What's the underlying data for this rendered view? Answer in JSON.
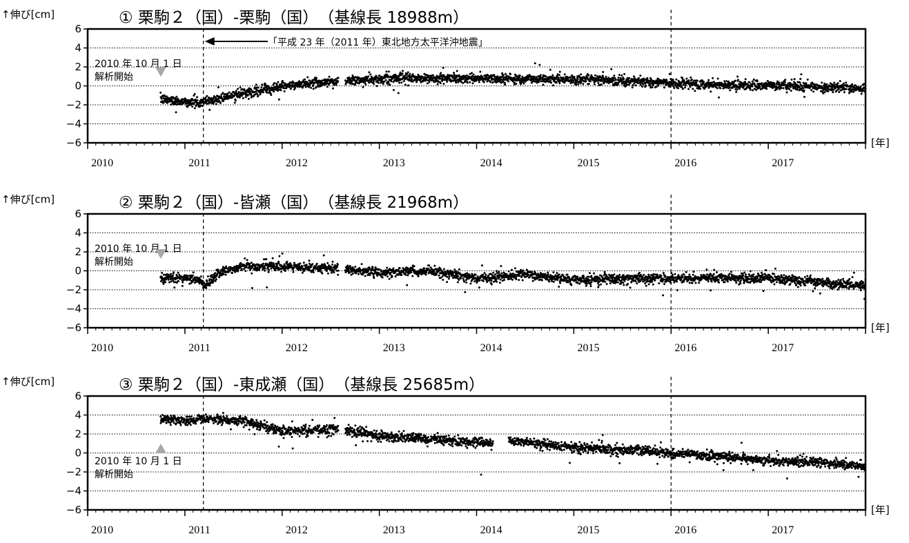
{
  "y_axis_label": "↑伸び[cm]",
  "x_unit_label": "[年]",
  "quake_label": "「平成 23 年（2011 年）東北地方太平洋沖地震」",
  "colors": {
    "frame": "#000000",
    "dots": "#000000",
    "marker": "#a8a8a8"
  },
  "panels": [
    {
      "title": "①  栗駒２（国）-栗駒（国）　（基線長 18988m）",
      "start_note": [
        "2010 年 10 月 1 日",
        "解析開始"
      ],
      "start_marker": "down-triangle"
    },
    {
      "title": "②  栗駒２（国）-皆瀬（国）　（基線長 21968m）",
      "start_note": [
        "2010 年 10 月 1 日",
        "解析開始"
      ],
      "start_marker": "down-triangle"
    },
    {
      "title": "③  栗駒２（国）-東成瀬（国）　（基線長 25685m）",
      "start_note": [
        "2010 年 10 月 1 日",
        "解析開始"
      ],
      "start_marker": "up-triangle"
    }
  ],
  "chart_data": [
    {
      "type": "scatter",
      "title": "①  栗駒２（国）-栗駒（国）　（基線長 18988m）",
      "ylabel": "↑伸び[cm]",
      "xlabel": "[年]",
      "xlim": [
        2010.0,
        2018.0
      ],
      "ylim": [
        -6,
        6
      ],
      "x_ticks": [
        2010,
        2011,
        2012,
        2013,
        2014,
        2015,
        2016,
        2017
      ],
      "y_ticks": [
        6,
        4,
        2,
        0,
        -2,
        -4,
        -6
      ],
      "grid": "horizontal dotted",
      "event_lines": [
        2011.19,
        2016.0
      ],
      "data_start": 2010.75,
      "gaps": [
        [
          2012.58,
          2012.65
        ]
      ],
      "trend": [
        [
          2010.75,
          -1.4
        ],
        [
          2011.15,
          -1.8
        ],
        [
          2011.5,
          -1.0
        ],
        [
          2011.9,
          -0.2
        ],
        [
          2012.3,
          0.3
        ],
        [
          2012.6,
          0.5
        ],
        [
          2013.2,
          0.8
        ],
        [
          2014.0,
          0.8
        ],
        [
          2015.0,
          0.7
        ],
        [
          2016.0,
          0.3
        ],
        [
          2016.6,
          0.1
        ],
        [
          2017.3,
          0.0
        ],
        [
          2018.0,
          -0.3
        ]
      ],
      "scatter_sd": 0.25
    },
    {
      "type": "scatter",
      "title": "②  栗駒２（国）-皆瀬（国）　（基線長 21968m）",
      "ylabel": "↑伸び[cm]",
      "xlabel": "[年]",
      "xlim": [
        2010.0,
        2018.0
      ],
      "ylim": [
        -6,
        6
      ],
      "x_ticks": [
        2010,
        2011,
        2012,
        2013,
        2014,
        2015,
        2016,
        2017
      ],
      "y_ticks": [
        6,
        4,
        2,
        0,
        -2,
        -4,
        -6
      ],
      "grid": "horizontal dotted",
      "event_lines": [
        2011.19,
        2016.0
      ],
      "data_start": 2010.75,
      "gaps": [
        [
          2012.58,
          2012.65
        ]
      ],
      "trend": [
        [
          2010.75,
          -0.7
        ],
        [
          2011.15,
          -0.9
        ],
        [
          2011.2,
          -1.6
        ],
        [
          2011.35,
          -0.2
        ],
        [
          2011.6,
          0.5
        ],
        [
          2012.0,
          0.4
        ],
        [
          2012.6,
          0.2
        ],
        [
          2013.0,
          -0.2
        ],
        [
          2013.5,
          0.0
        ],
        [
          2014.0,
          -0.8
        ],
        [
          2014.5,
          -0.4
        ],
        [
          2015.0,
          -1.0
        ],
        [
          2015.5,
          -0.8
        ],
        [
          2016.0,
          -0.8
        ],
        [
          2016.5,
          -0.7
        ],
        [
          2017.0,
          -0.8
        ],
        [
          2017.5,
          -1.2
        ],
        [
          2018.0,
          -1.6
        ]
      ],
      "scatter_sd": 0.25
    },
    {
      "type": "scatter",
      "title": "③  栗駒２（国）-東成瀬（国）　（基線長 25685m）",
      "ylabel": "↑伸び[cm]",
      "xlabel": "[年]",
      "xlim": [
        2010.0,
        2018.0
      ],
      "ylim": [
        -6,
        6
      ],
      "x_ticks": [
        2010,
        2011,
        2012,
        2013,
        2014,
        2015,
        2016,
        2017
      ],
      "y_ticks": [
        6,
        4,
        2,
        0,
        -2,
        -4,
        -6
      ],
      "grid": "horizontal dotted",
      "event_lines": [
        2011.19,
        2016.0
      ],
      "data_start": 2010.75,
      "gaps": [
        [
          2012.58,
          2012.65
        ],
        [
          2014.17,
          2014.33
        ]
      ],
      "trend": [
        [
          2010.75,
          3.6
        ],
        [
          2011.0,
          3.4
        ],
        [
          2011.2,
          3.6
        ],
        [
          2011.6,
          3.4
        ],
        [
          2012.0,
          2.3
        ],
        [
          2012.6,
          2.5
        ],
        [
          2013.0,
          1.8
        ],
        [
          2013.6,
          1.4
        ],
        [
          2014.17,
          1.0
        ],
        [
          2014.33,
          1.3
        ],
        [
          2014.8,
          0.8
        ],
        [
          2015.2,
          0.4
        ],
        [
          2015.7,
          0.3
        ],
        [
          2016.0,
          -0.1
        ],
        [
          2016.6,
          -0.4
        ],
        [
          2017.0,
          -0.8
        ],
        [
          2017.5,
          -1.0
        ],
        [
          2018.0,
          -1.4
        ]
      ],
      "scatter_sd": 0.25
    }
  ]
}
